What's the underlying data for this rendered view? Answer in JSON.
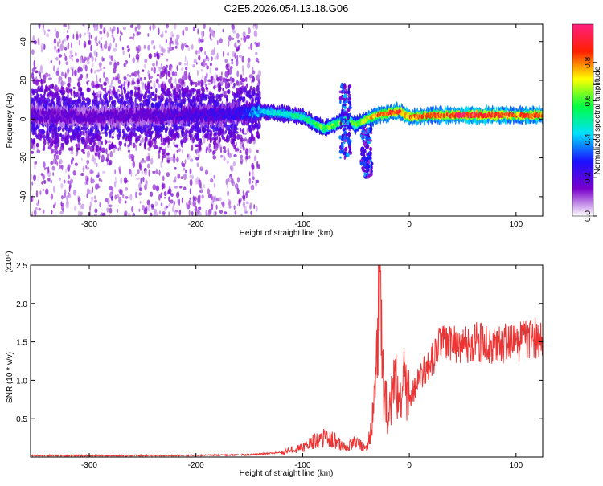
{
  "figure_title": "C2E5.2026.054.13.18.G06",
  "chart_data": [
    {
      "type": "heatmap",
      "title": "",
      "xlabel": "Height of straight line (km)",
      "ylabel": "Frequency (Hz)",
      "xlim": [
        -355,
        125
      ],
      "ylim": [
        -50,
        49
      ],
      "x_ticks": [
        -300,
        -200,
        -100,
        0,
        100
      ],
      "x_tick_labels": [
        "-300",
        "-200",
        "-100",
        "0",
        "100"
      ],
      "y_ticks": [
        -40,
        -20,
        0,
        20,
        40
      ],
      "y_tick_labels": [
        "-40",
        "-20",
        "0",
        "20",
        "40"
      ],
      "colorbar": {
        "label": "Normalized spectral amplitude",
        "range": [
          0,
          1
        ],
        "ticks": [
          0.0,
          0.2,
          0.4,
          0.6,
          0.8
        ],
        "tick_labels": [
          "0.0",
          "0.2",
          "0.4",
          "0.6",
          "0.8"
        ],
        "colormap": [
          "#ffffff",
          "#7a00cc",
          "#1a10ff",
          "#00e0ff",
          "#00ff40",
          "#ffff00",
          "#ff2000",
          "#ff2080"
        ]
      },
      "ridge": {
        "x": [
          -355,
          -300,
          -250,
          -200,
          -160,
          -140,
          -120,
          -100,
          -90,
          -80,
          -70,
          -60,
          -50,
          -40,
          -30,
          -20,
          -10,
          0,
          20,
          50,
          80,
          100,
          125
        ],
        "center_hz": [
          2,
          1,
          2,
          2,
          3,
          4,
          3,
          1,
          -2,
          -5,
          -3,
          0,
          -3,
          0,
          2,
          3,
          4,
          1,
          2,
          2,
          2,
          2,
          2
        ],
        "peak_amplitude": [
          0.18,
          0.17,
          0.18,
          0.22,
          0.25,
          0.42,
          0.48,
          0.5,
          0.55,
          0.6,
          0.62,
          0.58,
          0.62,
          0.72,
          0.78,
          0.82,
          0.85,
          0.82,
          0.8,
          0.9,
          0.88,
          0.82,
          0.85
        ]
      },
      "plume_events": [
        {
          "x": -60,
          "freq_range": [
            -20,
            18
          ]
        },
        {
          "x": -40,
          "freq_range": [
            -30,
            -5
          ]
        }
      ]
    },
    {
      "type": "line",
      "title": "",
      "xlabel": "Height of straight line (km)",
      "ylabel": "SNR (10 * v/v)",
      "y_multiplier_label": "(x10⁴)",
      "xlim": [
        -355,
        125
      ],
      "ylim": [
        0,
        2.5
      ],
      "x_ticks": [
        -300,
        -200,
        -100,
        0,
        100
      ],
      "x_tick_labels": [
        "-300",
        "-200",
        "-100",
        "0",
        "100"
      ],
      "y_ticks": [
        0.5,
        1.0,
        1.5,
        2.0,
        2.5
      ],
      "y_tick_labels": [
        "0.5",
        "1.0",
        "1.5",
        "2.0",
        "2.5"
      ],
      "series": [
        {
          "name": "SNR",
          "color": "#ee3333",
          "x": [
            -355,
            -300,
            -250,
            -200,
            -150,
            -120,
            -100,
            -90,
            -80,
            -70,
            -60,
            -50,
            -40,
            -35,
            -30,
            -28,
            -25,
            -20,
            -15,
            -10,
            -5,
            0,
            10,
            20,
            30,
            40,
            60,
            80,
            100,
            125
          ],
          "values": [
            0.02,
            0.02,
            0.02,
            0.02,
            0.03,
            0.06,
            0.12,
            0.2,
            0.25,
            0.22,
            0.12,
            0.2,
            0.1,
            0.45,
            1.2,
            2.5,
            1.0,
            0.55,
            0.85,
            0.95,
            1.05,
            0.75,
            1.05,
            1.25,
            1.5,
            1.45,
            1.5,
            1.45,
            1.5,
            1.55
          ]
        }
      ]
    }
  ]
}
